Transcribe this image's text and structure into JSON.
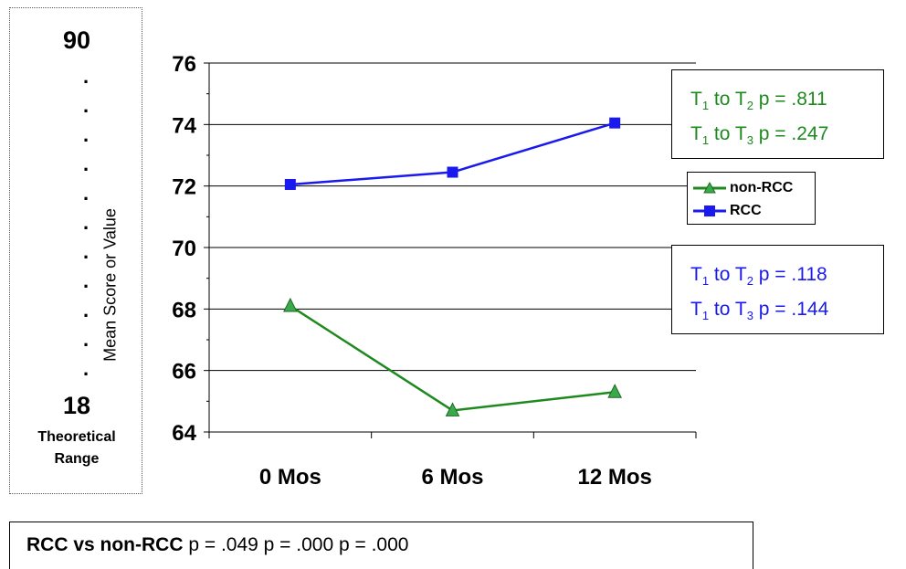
{
  "range_box": {
    "top_value": "90",
    "bottom_value": "18",
    "label_line1": "Theoretical",
    "label_line2": "Range",
    "dot": "."
  },
  "chart_data": {
    "type": "line",
    "categories": [
      "0 Mos",
      "6 Mos",
      "12 Mos"
    ],
    "ylabel": "Mean Score or Value",
    "ylim": [
      64,
      76
    ],
    "yticks": [
      64,
      66,
      68,
      70,
      72,
      74,
      76
    ],
    "grid": "horizontal major gridlines",
    "legend_position": "right",
    "series": [
      {
        "name": "non-RCC",
        "values": [
          68.1,
          64.7,
          65.3
        ],
        "color": "#1e8a1e",
        "marker": "triangle"
      },
      {
        "name": "RCC",
        "values": [
          72.05,
          72.45,
          74.05
        ],
        "color": "#1a1aee",
        "marker": "square"
      }
    ]
  },
  "annotations": {
    "green_box": {
      "line1": {
        "a": "T",
        "a_sub": "1",
        "b": " to T",
        "b_sub": "2",
        "rest": " p = .811"
      },
      "line2": {
        "a": "T",
        "a_sub": "1",
        "b": " to T",
        "b_sub": "3",
        "rest": " p = .247"
      }
    },
    "blue_box": {
      "line1": {
        "a": "T",
        "a_sub": "1",
        "b": " to T",
        "b_sub": "2",
        "rest": " p = .118"
      },
      "line2": {
        "a": "T",
        "a_sub": "1",
        "b": " to T",
        "b_sub": "3",
        "rest": " p = .144"
      }
    },
    "bottom": {
      "bold": "RCC vs non-RCC",
      "rest": " p = .049 p = .000 p = .000"
    }
  }
}
